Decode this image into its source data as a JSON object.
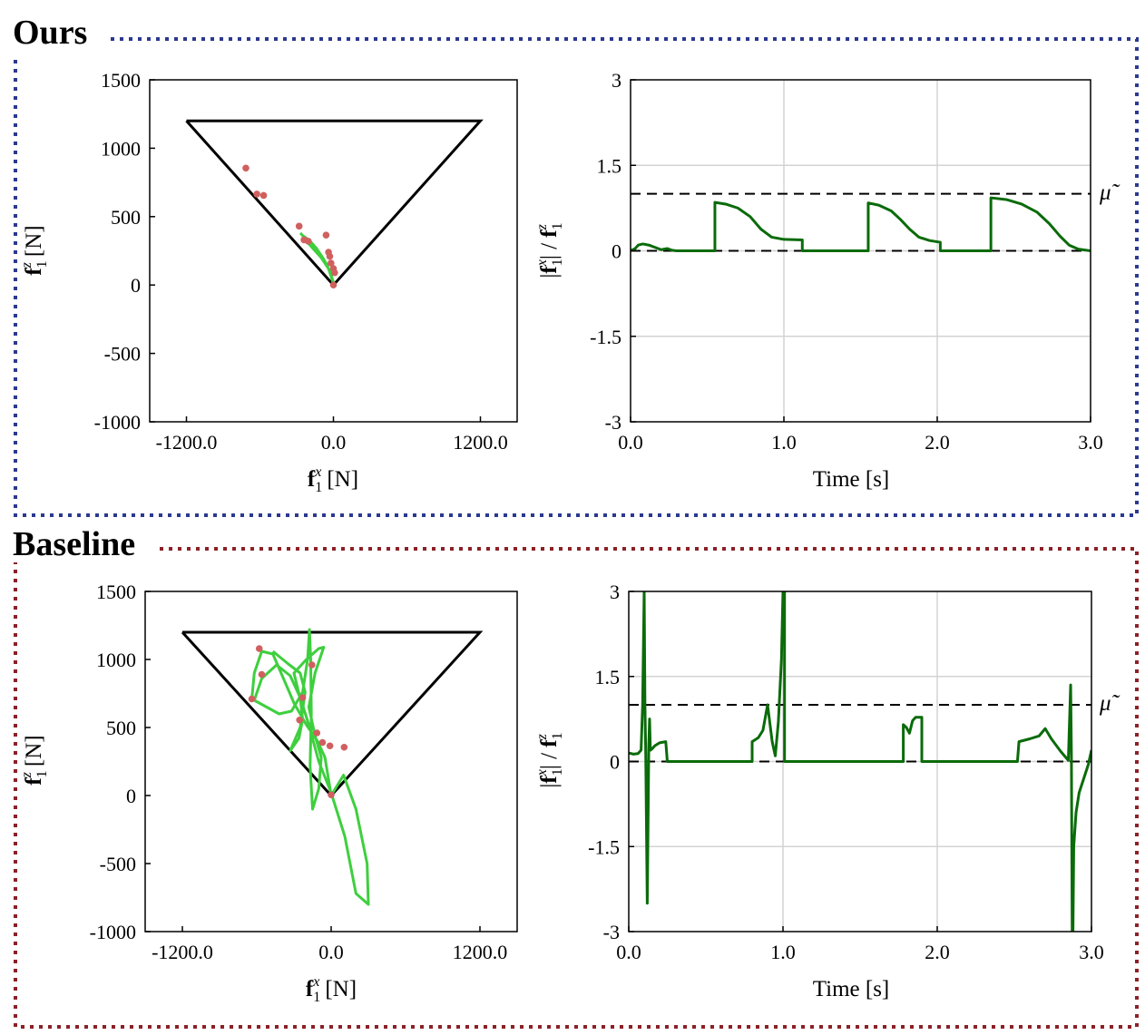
{
  "panels": [
    {
      "title": "Ours",
      "frame_color": "#2b3990",
      "mu_symbol": "μ̃"
    },
    {
      "title": "Baseline",
      "frame_color": "#8b2127",
      "mu_symbol": "μ̃"
    }
  ],
  "colors": {
    "cone": "#000000",
    "trajectory": "#3ecf3e",
    "contact_dots": "#d06060",
    "ratio_line": "#0a6b0a",
    "grid": "#d3d3d3"
  },
  "chart_data": [
    {
      "panel": "Ours",
      "type": "scatter",
      "xlabel": "f1x [N]",
      "ylabel": "f1z [N]",
      "xlim": [
        -1500,
        1500
      ],
      "ylim": [
        -1000,
        1500
      ],
      "xticks": [
        -1200.0,
        0.0,
        1200.0
      ],
      "xtick_labels": [
        "-1200.0",
        "0.0",
        "1200.0"
      ],
      "yticks": [
        -1000,
        -500,
        0,
        500,
        1000,
        1500
      ],
      "ytick_labels": [
        "-1000",
        "-500",
        "0",
        "500",
        "1000",
        "1500"
      ],
      "friction_cone": [
        [
          -1200,
          1200
        ],
        [
          1200,
          1200
        ],
        [
          0,
          0
        ],
        [
          -1200,
          1200
        ]
      ],
      "trajectory": [
        [
          -270,
          380
        ],
        [
          -230,
          340
        ],
        [
          -180,
          290
        ],
        [
          -120,
          230
        ],
        [
          -60,
          160
        ],
        [
          -20,
          80
        ],
        [
          0,
          10
        ],
        [
          -40,
          120
        ],
        [
          -100,
          200
        ],
        [
          -160,
          260
        ],
        [
          -220,
          320
        ],
        [
          -250,
          360
        ],
        [
          -200,
          330
        ],
        [
          -140,
          270
        ],
        [
          -80,
          190
        ],
        [
          -30,
          100
        ],
        [
          0,
          20
        ]
      ],
      "contact_points": [
        [
          -715,
          855
        ],
        [
          -625,
          665
        ],
        [
          -570,
          655
        ],
        [
          -280,
          430
        ],
        [
          -240,
          330
        ],
        [
          -205,
          320
        ],
        [
          -60,
          365
        ],
        [
          -40,
          240
        ],
        [
          -30,
          210
        ],
        [
          -20,
          160
        ],
        [
          0,
          120
        ],
        [
          10,
          90
        ],
        [
          0,
          0
        ]
      ]
    },
    {
      "panel": "Ours",
      "type": "line",
      "xlabel": "Time [s]",
      "ylabel": "|f1x| / f1z",
      "xlim": [
        0,
        3
      ],
      "ylim": [
        -3,
        3
      ],
      "xticks": [
        0.0,
        1.0,
        2.0,
        3.0
      ],
      "xtick_labels": [
        "0.0",
        "1.0",
        "2.0",
        "3.0"
      ],
      "yticks": [
        -3,
        -1.5,
        0,
        1.5,
        3
      ],
      "ytick_labels": [
        "-3",
        "-1.5",
        "0",
        "1.5",
        "3"
      ],
      "grid": true,
      "mu": 1.0,
      "x": [
        0,
        0.03,
        0.05,
        0.08,
        0.12,
        0.16,
        0.2,
        0.24,
        0.27,
        0.3,
        0.55,
        0.55,
        0.62,
        0.7,
        0.78,
        0.85,
        0.92,
        1.0,
        1.12,
        1.12,
        1.55,
        1.55,
        1.62,
        1.7,
        1.76,
        1.82,
        1.88,
        1.95,
        2.02,
        2.02,
        2.35,
        2.35,
        2.45,
        2.55,
        2.65,
        2.73,
        2.8,
        2.86,
        2.92,
        3.0
      ],
      "y": [
        0,
        0.04,
        0.1,
        0.12,
        0.1,
        0.06,
        0.02,
        0.04,
        0.01,
        0,
        0,
        0.85,
        0.82,
        0.75,
        0.6,
        0.38,
        0.24,
        0.2,
        0.19,
        0,
        0,
        0.84,
        0.8,
        0.7,
        0.55,
        0.38,
        0.24,
        0.18,
        0.15,
        0,
        0,
        0.93,
        0.9,
        0.82,
        0.68,
        0.48,
        0.26,
        0.1,
        0.03,
        0
      ]
    },
    {
      "panel": "Baseline",
      "type": "scatter",
      "xlabel": "f1x [N]",
      "ylabel": "f1z [N]",
      "xlim": [
        -1500,
        1500
      ],
      "ylim": [
        -1000,
        1500
      ],
      "xticks": [
        -1200.0,
        0.0,
        1200.0
      ],
      "xtick_labels": [
        "-1200.0",
        "0.0",
        "1200.0"
      ],
      "yticks": [
        -1000,
        -500,
        0,
        500,
        1000,
        1500
      ],
      "ytick_labels": [
        "-1000",
        "-500",
        "0",
        "500",
        "1000",
        "1500"
      ],
      "friction_cone": [
        [
          -1200,
          1200
        ],
        [
          1200,
          1200
        ],
        [
          0,
          0
        ],
        [
          -1200,
          1200
        ]
      ],
      "trajectory": [
        [
          -640,
          710
        ],
        [
          -620,
          900
        ],
        [
          -560,
          1060
        ],
        [
          -470,
          1040
        ],
        [
          -380,
          850
        ],
        [
          -300,
          680
        ],
        [
          -200,
          520
        ],
        [
          -110,
          400
        ],
        [
          -50,
          280
        ],
        [
          0,
          0
        ],
        [
          100,
          150
        ],
        [
          200,
          -100
        ],
        [
          290,
          -500
        ],
        [
          300,
          -800
        ],
        [
          200,
          -720
        ],
        [
          110,
          -300
        ],
        [
          0,
          20
        ],
        [
          -100,
          250
        ],
        [
          -180,
          520
        ],
        [
          -260,
          750
        ],
        [
          -300,
          900
        ],
        [
          -200,
          1000
        ],
        [
          -100,
          1080
        ],
        [
          -60,
          1090
        ],
        [
          -130,
          900
        ],
        [
          -180,
          650
        ],
        [
          -130,
          440
        ],
        [
          -80,
          280
        ],
        [
          -100,
          50
        ],
        [
          -150,
          -100
        ],
        [
          -170,
          220
        ],
        [
          -160,
          600
        ],
        [
          -165,
          1000
        ],
        [
          -175,
          1220
        ],
        [
          -190,
          1000
        ],
        [
          -230,
          760
        ],
        [
          -320,
          620
        ],
        [
          -420,
          600
        ],
        [
          -520,
          650
        ],
        [
          -620,
          700
        ],
        [
          -560,
          860
        ],
        [
          -440,
          960
        ],
        [
          -330,
          880
        ],
        [
          -250,
          720
        ],
        [
          -230,
          560
        ],
        [
          -260,
          420
        ],
        [
          -330,
          330
        ],
        [
          -250,
          500
        ],
        [
          -210,
          760
        ],
        [
          -250,
          900
        ],
        [
          -350,
          970
        ],
        [
          -470,
          1060
        ]
      ],
      "contact_points": [
        [
          -640,
          710
        ],
        [
          -580,
          1080
        ],
        [
          -560,
          890
        ],
        [
          -155,
          960
        ],
        [
          -230,
          720
        ],
        [
          -255,
          555
        ],
        [
          -115,
          460
        ],
        [
          -70,
          390
        ],
        [
          -10,
          365
        ],
        [
          105,
          355
        ],
        [
          0,
          5
        ]
      ]
    },
    {
      "panel": "Baseline",
      "type": "line",
      "xlabel": "Time [s]",
      "ylabel": "|f1x| / f1z",
      "xlim": [
        0,
        3
      ],
      "ylim": [
        -3,
        3
      ],
      "xticks": [
        0.0,
        1.0,
        2.0,
        3.0
      ],
      "xtick_labels": [
        "0.0",
        "1.0",
        "2.0",
        "3.0"
      ],
      "yticks": [
        -3,
        -1.5,
        0,
        1.5,
        3
      ],
      "ytick_labels": [
        "-3",
        "-1.5",
        "0",
        "1.5",
        "3"
      ],
      "grid": true,
      "mu": 1.0,
      "x": [
        0,
        0.03,
        0.06,
        0.08,
        0.09,
        0.1,
        0.105,
        0.11,
        0.12,
        0.13,
        0.135,
        0.14,
        0.15,
        0.17,
        0.2,
        0.24,
        0.25,
        0.8,
        0.8,
        0.84,
        0.87,
        0.9,
        0.93,
        0.95,
        0.97,
        0.99,
        1.0,
        1.01,
        1.01,
        1.03,
        1.04,
        1.78,
        1.78,
        1.8,
        1.82,
        1.84,
        1.86,
        1.88,
        1.9,
        1.9,
        1.91,
        2.52,
        2.53,
        2.6,
        2.66,
        2.7,
        2.74,
        2.8,
        2.85,
        2.865,
        2.87,
        2.875,
        2.88,
        2.885,
        2.9,
        2.92,
        2.95,
        2.98,
        3.0
      ],
      "y": [
        0.15,
        0.13,
        0.14,
        0.2,
        1.0,
        3.0,
        1.0,
        0.15,
        -2.5,
        0.3,
        0.75,
        0.2,
        0.22,
        0.28,
        0.33,
        0.35,
        0,
        0,
        0.35,
        0.42,
        0.55,
        1.0,
        0.35,
        0.1,
        0.7,
        1.8,
        3.0,
        3.0,
        0,
        0,
        0,
        0,
        0.65,
        0.6,
        0.5,
        0.72,
        0.78,
        0.78,
        0.78,
        0,
        0,
        0,
        0.35,
        0.4,
        0.45,
        0.58,
        0.4,
        0.18,
        0.02,
        1.35,
        0.1,
        -3.0,
        -3.0,
        -1.5,
        -0.9,
        -0.55,
        -0.3,
        -0.05,
        0.2
      ]
    }
  ]
}
